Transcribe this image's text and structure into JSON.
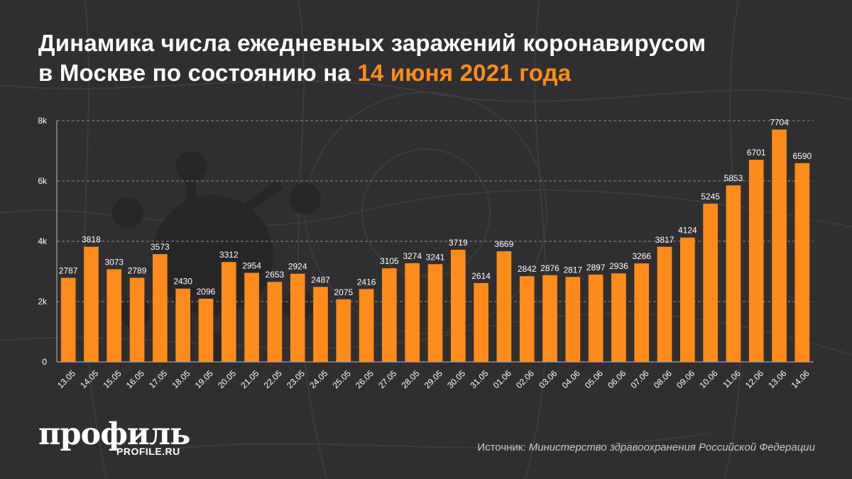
{
  "title": {
    "line1": "Динамика числа ежедневных заражений коронавирусом",
    "line2_prefix": "в Москве по состоянию на ",
    "line2_highlight": "14 июня 2021 года"
  },
  "colors": {
    "background": "#2f2f31",
    "bar": "#ff8c1a",
    "highlight": "#ff8c1a",
    "text": "#ffffff",
    "grid": "#8a8a8a"
  },
  "chart_data": {
    "type": "bar",
    "title": "Динамика числа ежедневных заражений коронавирусом в Москве по состоянию на 14 июня 2021 года",
    "xlabel": "",
    "ylabel": "",
    "ylim": [
      0,
      8000
    ],
    "grid": true,
    "yticks": [
      {
        "value": 0,
        "label": "0"
      },
      {
        "value": 2000,
        "label": "2k"
      },
      {
        "value": 4000,
        "label": "4k"
      },
      {
        "value": 6000,
        "label": "6k"
      },
      {
        "value": 8000,
        "label": "8k"
      }
    ],
    "categories": [
      "13.05",
      "14.05",
      "15.05",
      "16.05",
      "17.05",
      "18.05",
      "19.05",
      "20.05",
      "21.05",
      "22.05",
      "23.05",
      "24.05",
      "25.05",
      "26.05",
      "27.05",
      "28.05",
      "29.05",
      "30.05",
      "31.05",
      "01.06",
      "02.06",
      "03.06",
      "04.06",
      "05.06",
      "06.06",
      "07.06",
      "08.06",
      "09.06",
      "10.06",
      "11.06",
      "12.06",
      "13.06",
      "14.06"
    ],
    "values": [
      2787,
      3818,
      3073,
      2789,
      3573,
      2430,
      2096,
      3312,
      2954,
      2653,
      2924,
      2487,
      2075,
      2416,
      3105,
      3274,
      3241,
      3719,
      2614,
      3669,
      2842,
      2876,
      2817,
      2897,
      2936,
      3266,
      3817,
      4124,
      5245,
      5853,
      6701,
      7704,
      6590
    ]
  },
  "logo": {
    "main": "профиль",
    "sub": "PROFILE.RU"
  },
  "source": {
    "label": "Источник: ",
    "value": "Министерство здравоохранения Российской Федерации"
  }
}
